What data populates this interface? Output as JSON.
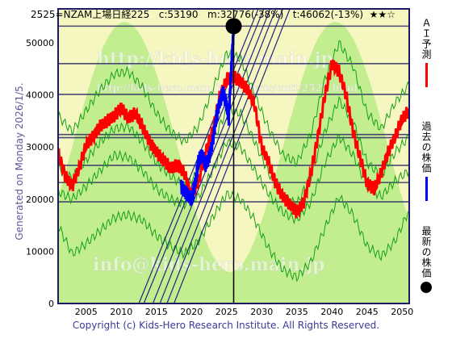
{
  "header": {
    "code": "2525=NZAM上場日経225",
    "current": "c:53190",
    "mid": "m:32776(-38%)",
    "target": "t:46062(-13%)",
    "stars": "★★☆"
  },
  "side_note": "Generated on Monday 2026/1/5.",
  "footer": "Copyright (c) Kids-Hero Research Institute. All Rights Reserved.",
  "watermarks": [
    "http://kids-hero.main.jp",
    "http://kids-hero.main.jp/analysis/cutt/2525.html",
    "info@kids-hero.main.jp"
  ],
  "legend": [
    {
      "label": "ＡＩ予測",
      "color": "#ff0000",
      "kind": "line"
    },
    {
      "label": "過去の株価",
      "color": "#0000ff",
      "kind": "line"
    },
    {
      "label": "最新の株価",
      "color": "#000000",
      "kind": "dot"
    }
  ],
  "colors": {
    "plot_bg": "#f6f6c0",
    "band": "#b9ec86",
    "frame": "#1a1a66",
    "hline": "#2a2a66",
    "fan": "#24247a",
    "green": "#14a014",
    "forecast": "#ff0000",
    "history": "#0000ff",
    "latest": "#000000"
  },
  "chart_data": {
    "type": "line",
    "title": "",
    "xlabel": "",
    "ylabel": "",
    "xlim": [
      2001,
      2051
    ],
    "ylim": [
      0,
      56500
    ],
    "x_ticks": [
      2005,
      2010,
      2015,
      2020,
      2025,
      2030,
      2035,
      2040,
      2045,
      2050
    ],
    "y_ticks": [
      0,
      10000,
      20000,
      30000,
      40000,
      50000
    ],
    "horizontal_levels": [
      53190,
      46000,
      40100,
      32400,
      31800,
      26500,
      23200,
      19500
    ],
    "current_year": 2026,
    "latest_point": {
      "x": 2026,
      "y": 53190
    },
    "fan_lines": [
      {
        "x1": 2012.5,
        "x2": 2029.5
      },
      {
        "x1": 2013.2,
        "x2": 2030.3
      },
      {
        "x1": 2014.5,
        "x2": 2031.2
      },
      {
        "x1": 2015.5,
        "x2": 2032.0
      },
      {
        "x1": 2016.5,
        "x2": 2033.0
      },
      {
        "x1": 2017.5,
        "x2": 2034.0
      }
    ],
    "series": [
      {
        "name": "ＡＩ予測",
        "color": "#ff0000",
        "x": [
          2001,
          2002,
          2003,
          2004,
          2005,
          2006,
          2007,
          2008,
          2009,
          2010,
          2011,
          2012,
          2013,
          2014,
          2015,
          2016,
          2017,
          2018,
          2019,
          2020,
          2021,
          2022,
          2023,
          2024,
          2025,
          2026,
          2027,
          2028,
          2029,
          2030,
          2031,
          2032,
          2033,
          2034,
          2035,
          2036,
          2037,
          2038,
          2039,
          2040,
          2041,
          2042,
          2043,
          2044,
          2045,
          2046,
          2047,
          2048,
          2049,
          2050,
          2051
        ],
        "values": [
          29000,
          24500,
          22500,
          26000,
          30500,
          32000,
          34000,
          35000,
          36000,
          37500,
          35500,
          36500,
          34000,
          31000,
          29000,
          27500,
          26000,
          26500,
          25000,
          20500,
          23500,
          29000,
          33000,
          39500,
          43000,
          43500,
          42500,
          41000,
          38000,
          30000,
          27000,
          23000,
          20500,
          19000,
          17500,
          19500,
          25000,
          32000,
          40000,
          46000,
          44500,
          40000,
          33000,
          28000,
          23000,
          22000,
          25000,
          29000,
          32000,
          35500,
          37000
        ]
      },
      {
        "name": "過去の株価",
        "color": "#0000ff",
        "x": [
          2018.5,
          2019,
          2019.5,
          2020,
          2020.3,
          2020.7,
          2021,
          2021.5,
          2022,
          2022.5,
          2023,
          2023.5,
          2024,
          2024.5,
          2025,
          2025.3,
          2025.6,
          2025.8,
          2026
        ],
        "values": [
          22500,
          21500,
          20800,
          20000,
          21500,
          24500,
          27500,
          28500,
          26500,
          28000,
          31000,
          35500,
          38500,
          40500,
          38000,
          35500,
          43500,
          48500,
          52500
        ]
      },
      {
        "name": "",
        "color": "#14a014",
        "x": [
          2001,
          2003,
          2005,
          2007,
          2009,
          2011,
          2013,
          2015,
          2017,
          2019,
          2021,
          2023,
          2025,
          2027,
          2029,
          2031,
          2033,
          2035,
          2037,
          2039,
          2041,
          2043,
          2045,
          2047,
          2049,
          2051
        ],
        "values": [
          26000,
          24000,
          27500,
          31000,
          33500,
          34000,
          31000,
          27000,
          24500,
          22500,
          25000,
          31000,
          37000,
          36500,
          31000,
          25000,
          20500,
          19000,
          24500,
          33000,
          39000,
          35000,
          27000,
          24500,
          29000,
          32000
        ]
      },
      {
        "name": "",
        "color": "#14a014",
        "x": [
          2001,
          2003,
          2005,
          2007,
          2009,
          2011,
          2013,
          2015,
          2017,
          2019,
          2021,
          2023,
          2025,
          2027,
          2029,
          2031,
          2033,
          2035,
          2037,
          2039,
          2041,
          2043,
          2045,
          2047,
          2049,
          2051
        ],
        "values": [
          21500,
          20000,
          22500,
          25500,
          28500,
          28000,
          25500,
          22000,
          20000,
          19000,
          20500,
          25500,
          31000,
          30000,
          25500,
          21000,
          17500,
          16000,
          19500,
          27000,
          32000,
          28500,
          22500,
          20500,
          23500,
          25500
        ]
      },
      {
        "name": "",
        "color": "#14a014",
        "x": [
          2001,
          2003,
          2005,
          2007,
          2009,
          2011,
          2013,
          2015,
          2017,
          2019,
          2021,
          2023,
          2025,
          2027,
          2029,
          2031,
          2033,
          2035,
          2037,
          2039,
          2041,
          2043,
          2045,
          2047,
          2049,
          2051
        ],
        "values": [
          15000,
          9500,
          11500,
          14000,
          16500,
          17000,
          16000,
          13000,
          11000,
          9500,
          12000,
          16500,
          21000,
          20000,
          16000,
          10500,
          6500,
          5000,
          8000,
          14500,
          20500,
          17000,
          11000,
          9000,
          12000,
          18000
        ]
      },
      {
        "name": "",
        "color": "#14a014",
        "x": [
          2001,
          2003,
          2005,
          2007,
          2009,
          2011,
          2013,
          2015,
          2017,
          2019,
          2021,
          2023,
          2025,
          2027,
          2029,
          2031,
          2033,
          2035,
          2037,
          2039,
          2041,
          2043,
          2045,
          2047,
          2049,
          2051
        ],
        "values": [
          36000,
          33000,
          37000,
          41000,
          44000,
          44500,
          41500,
          36500,
          33000,
          31000,
          34000,
          41000,
          48000,
          47000,
          40000,
          33500,
          28500,
          27000,
          32500,
          43000,
          50000,
          45500,
          36500,
          33500,
          38500,
          42000
        ]
      }
    ]
  }
}
